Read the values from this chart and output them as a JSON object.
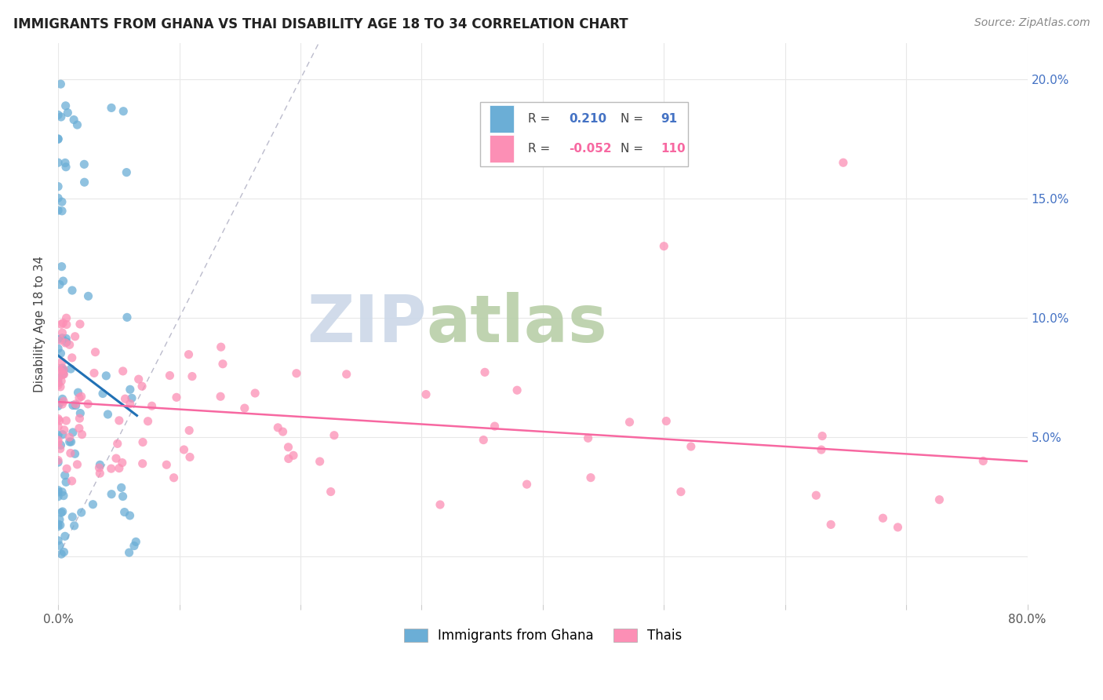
{
  "title": "IMMIGRANTS FROM GHANA VS THAI DISABILITY AGE 18 TO 34 CORRELATION CHART",
  "source": "Source: ZipAtlas.com",
  "ylabel": "Disability Age 18 to 34",
  "xlim": [
    0.0,
    0.8
  ],
  "ylim": [
    -0.02,
    0.215
  ],
  "ghana_R": 0.21,
  "ghana_N": 91,
  "thai_R": -0.052,
  "thai_N": 110,
  "ghana_color": "#6baed6",
  "thai_color": "#fc8fb5",
  "ghana_trend_color": "#2171b5",
  "thai_trend_color": "#f768a1",
  "diagonal_color": "#bbbbcc",
  "background_color": "#ffffff",
  "grid_color": "#e8e8e8",
  "title_color": "#222222",
  "source_color": "#888888",
  "ylabel_color": "#444444",
  "tick_color_x": "#555555",
  "tick_color_y": "#4472c4",
  "legend_box_color": "#4472c4",
  "legend_pink_color": "#f768a1",
  "x_ticks": [
    0.0,
    0.1,
    0.2,
    0.3,
    0.4,
    0.5,
    0.6,
    0.7,
    0.8
  ],
  "y_ticks": [
    0.0,
    0.05,
    0.1,
    0.15,
    0.2
  ],
  "x_tick_labels": [
    "0.0%",
    "",
    "",
    "",
    "",
    "",
    "",
    "",
    "80.0%"
  ],
  "y_tick_labels": [
    "",
    "5.0%",
    "10.0%",
    "15.0%",
    "20.0%"
  ],
  "ghana_seed": 17,
  "thai_seed": 23,
  "watermark_zip_color": "#ccd8e8",
  "watermark_atlas_color": "#b8cfa8"
}
